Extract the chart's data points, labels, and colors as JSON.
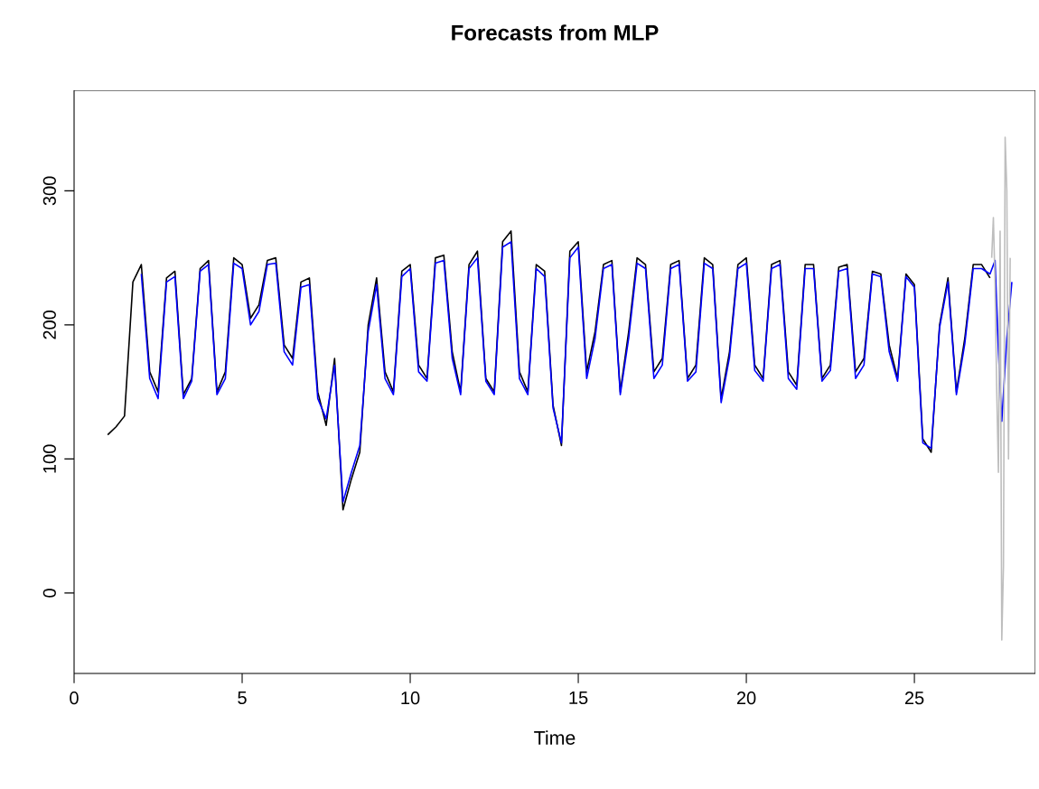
{
  "chart_data": {
    "type": "line",
    "title": "Forecasts from MLP",
    "xlabel": "Time",
    "xlim": [
      0,
      28.6
    ],
    "ylim": [
      -60,
      375
    ],
    "xticks": [
      0,
      5,
      10,
      15,
      20,
      25
    ],
    "yticks": [
      0,
      100,
      200,
      300
    ],
    "grid": false,
    "marker": "none",
    "line_style": "solid",
    "series": [
      {
        "color": "#000000",
        "x": [
          1,
          1.25,
          1.5,
          1.75,
          2,
          2.25,
          2.5,
          2.75,
          3,
          3.25,
          3.5,
          3.75,
          4,
          4.25,
          4.5,
          4.75,
          5,
          5.25,
          5.5,
          5.75,
          6,
          6.25,
          6.5,
          6.75,
          7,
          7.25,
          7.5,
          7.75,
          8,
          8.25,
          8.5,
          8.75,
          9,
          9.25,
          9.5,
          9.75,
          10,
          10.25,
          10.5,
          10.75,
          11,
          11.25,
          11.5,
          11.75,
          12,
          12.25,
          12.5,
          12.75,
          13,
          13.25,
          13.5,
          13.75,
          14,
          14.25,
          14.5,
          14.75,
          15,
          15.25,
          15.5,
          15.75,
          16,
          16.25,
          16.5,
          16.75,
          17,
          17.25,
          17.5,
          17.75,
          18,
          18.25,
          18.5,
          18.75,
          19,
          19.25,
          19.5,
          19.75,
          20,
          20.25,
          20.5,
          20.75,
          21,
          21.25,
          21.5,
          21.75,
          22,
          22.25,
          22.5,
          22.75,
          23,
          23.25,
          23.5,
          23.75,
          24,
          24.25,
          24.5,
          24.75,
          25,
          25.25,
          25.5,
          25.75,
          26,
          26.25,
          26.5,
          26.75,
          27,
          27.25
        ],
        "values": [
          118,
          124,
          132,
          232,
          245,
          165,
          150,
          235,
          240,
          148,
          160,
          242,
          248,
          150,
          165,
          250,
          245,
          205,
          215,
          248,
          250,
          185,
          175,
          232,
          235,
          150,
          125,
          175,
          62,
          85,
          105,
          200,
          235,
          165,
          150,
          240,
          245,
          170,
          160,
          250,
          252,
          180,
          150,
          245,
          255,
          160,
          150,
          262,
          270,
          165,
          150,
          245,
          240,
          140,
          110,
          255,
          262,
          165,
          195,
          245,
          248,
          150,
          195,
          250,
          245,
          165,
          175,
          245,
          248,
          160,
          170,
          250,
          245,
          145,
          180,
          245,
          250,
          170,
          160,
          245,
          248,
          165,
          155,
          245,
          245,
          160,
          170,
          243,
          245,
          165,
          175,
          240,
          238,
          185,
          160,
          238,
          230,
          115,
          105,
          200,
          235,
          150,
          190,
          245,
          245,
          235
        ]
      },
      {
        "color": "#0000ff",
        "x": [
          2,
          2.25,
          2.5,
          2.75,
          3,
          3.25,
          3.5,
          3.75,
          4,
          4.25,
          4.5,
          4.75,
          5,
          5.25,
          5.5,
          5.75,
          6,
          6.25,
          6.5,
          6.75,
          7,
          7.25,
          7.5,
          7.75,
          8,
          8.25,
          8.5,
          8.75,
          9,
          9.25,
          9.5,
          9.75,
          10,
          10.25,
          10.5,
          10.75,
          11,
          11.25,
          11.5,
          11.75,
          12,
          12.25,
          12.5,
          12.75,
          13,
          13.25,
          13.5,
          13.75,
          14,
          14.25,
          14.5,
          14.75,
          15,
          15.25,
          15.5,
          15.75,
          16,
          16.25,
          16.5,
          16.75,
          17,
          17.25,
          17.5,
          17.75,
          18,
          18.25,
          18.5,
          18.75,
          19,
          19.25,
          19.5,
          19.75,
          20,
          20.25,
          20.5,
          20.75,
          21,
          21.25,
          21.5,
          21.75,
          22,
          22.25,
          22.5,
          22.75,
          23,
          23.25,
          23.5,
          23.75,
          24,
          24.25,
          24.5,
          24.75,
          25,
          25.25,
          25.5,
          25.75,
          26,
          26.25,
          26.5,
          26.75,
          27,
          27.25,
          27.4,
          27.5,
          27.6,
          27.75,
          27.9
        ],
        "values": [
          238,
          160,
          145,
          232,
          236,
          145,
          158,
          240,
          245,
          148,
          160,
          246,
          242,
          200,
          210,
          245,
          246,
          180,
          170,
          228,
          230,
          145,
          130,
          170,
          68,
          90,
          110,
          195,
          230,
          160,
          148,
          236,
          242,
          165,
          158,
          246,
          248,
          175,
          148,
          242,
          250,
          158,
          148,
          258,
          262,
          160,
          148,
          242,
          236,
          138,
          112,
          250,
          258,
          160,
          190,
          242,
          245,
          148,
          190,
          246,
          242,
          160,
          170,
          242,
          245,
          158,
          165,
          246,
          242,
          142,
          176,
          242,
          246,
          166,
          158,
          242,
          245,
          160,
          152,
          242,
          242,
          158,
          166,
          240,
          242,
          160,
          170,
          238,
          236,
          180,
          158,
          236,
          228,
          112,
          108,
          198,
          232,
          148,
          186,
          242,
          242,
          238,
          248,
          180,
          128,
          190,
          232
        ]
      },
      {
        "color": "#bebebe",
        "x": [
          27.3,
          27.35,
          27.4,
          27.45,
          27.5,
          27.55,
          27.6,
          27.65,
          27.7,
          27.75,
          27.8,
          27.85
        ],
        "values": [
          250,
          280,
          230,
          150,
          90,
          270,
          -35,
          20,
          340,
          300,
          100,
          250
        ]
      }
    ]
  }
}
